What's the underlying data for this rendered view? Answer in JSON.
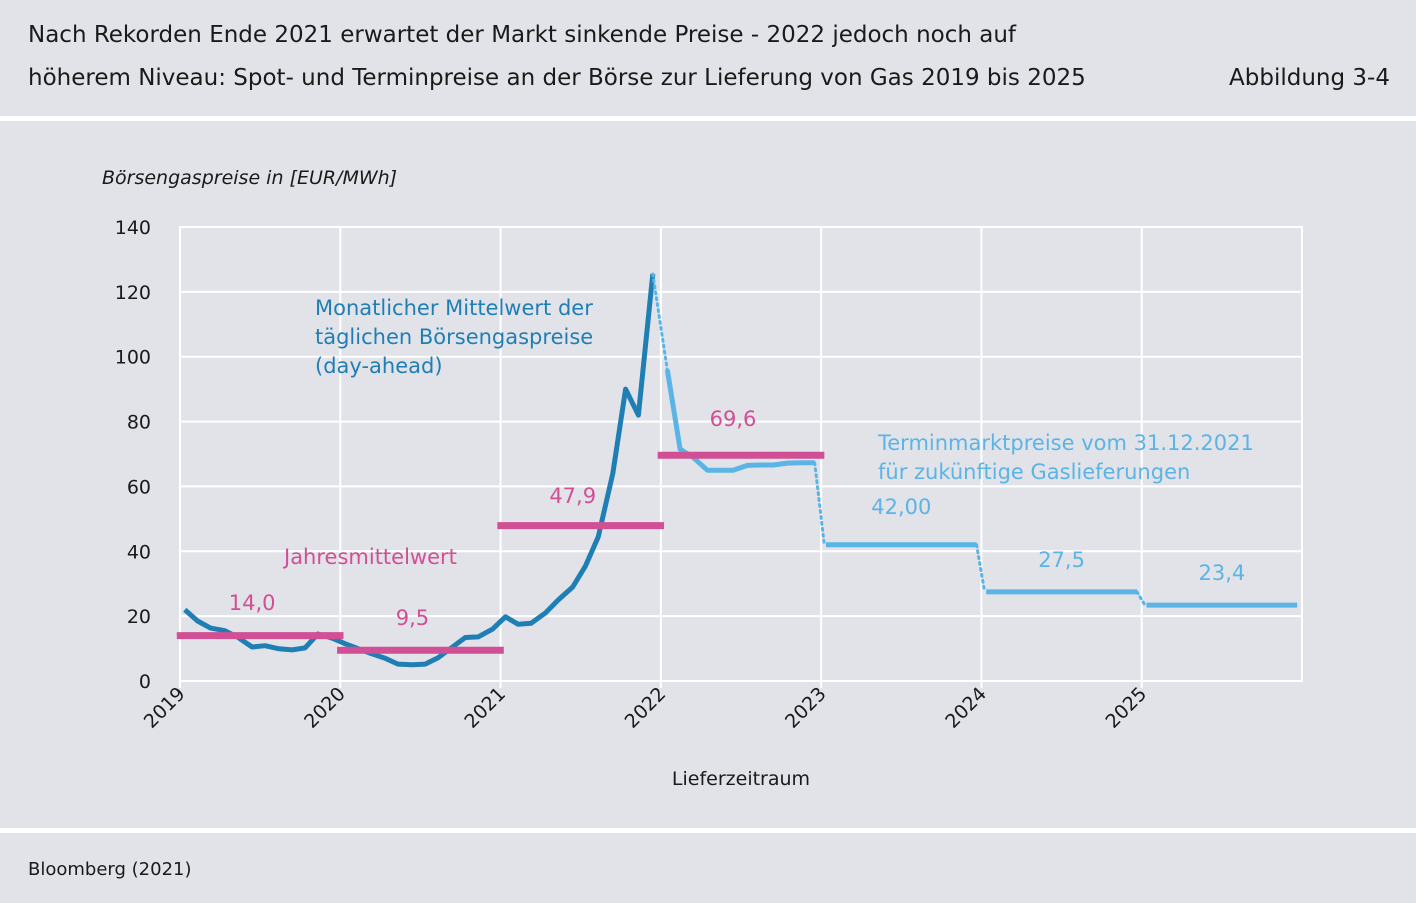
{
  "header": {
    "title_line1": "Nach Rekorden Ende 2021 erwartet der Markt sinkende Preise - 2022 jedoch noch auf",
    "title_line2": "höherem Niveau: Spot- und Terminpreise an der Börse zur Lieferung von Gas 2019 bis 2025",
    "figure_label": "Abbildung 3-4"
  },
  "footer": {
    "source": "Bloomberg (2021)"
  },
  "colors": {
    "spot": "#1f7fb4",
    "forward": "#5ab4e5",
    "annual": "#d04f95",
    "panel": "#e2e3e8",
    "grid": "#ffffff"
  },
  "chart_data": {
    "type": "line",
    "ylabel": "Börsengaspreise in [EUR/MWh]",
    "xlabel": "Lieferzeitraum",
    "ylim": [
      0,
      140
    ],
    "yticks": [
      "0",
      "20",
      "40",
      "60",
      "80",
      "100",
      "120",
      "140"
    ],
    "xlim": [
      2019,
      2026
    ],
    "xticks": [
      "2019",
      "2020",
      "2021",
      "2022",
      "2023",
      "2024",
      "2025"
    ],
    "grid": true,
    "series": [
      {
        "name": "Monatlicher Mittelwert der täglichen Börsengaspreise (day-ahead)",
        "style": "solid",
        "points": [
          [
            2019.03,
            22
          ],
          [
            2019.11,
            18.5
          ],
          [
            2019.19,
            16.3
          ],
          [
            2019.28,
            15.5
          ],
          [
            2019.36,
            13.5
          ],
          [
            2019.45,
            10.5
          ],
          [
            2019.53,
            10.9
          ],
          [
            2019.61,
            10
          ],
          [
            2019.7,
            9.6
          ],
          [
            2019.78,
            10.2
          ],
          [
            2019.86,
            14.5
          ],
          [
            2019.95,
            13.2
          ],
          [
            2020.03,
            11.5
          ],
          [
            2020.11,
            10
          ],
          [
            2020.19,
            8.5
          ],
          [
            2020.28,
            7
          ],
          [
            2020.36,
            5.2
          ],
          [
            2020.45,
            5
          ],
          [
            2020.53,
            5.2
          ],
          [
            2020.61,
            7.2
          ],
          [
            2020.7,
            10.5
          ],
          [
            2020.78,
            13.4
          ],
          [
            2020.86,
            13.6
          ],
          [
            2020.95,
            16
          ],
          [
            2021.03,
            19.8
          ],
          [
            2021.11,
            17.5
          ],
          [
            2021.19,
            17.8
          ],
          [
            2021.28,
            21
          ],
          [
            2021.36,
            25
          ],
          [
            2021.45,
            29
          ],
          [
            2021.53,
            35.5
          ],
          [
            2021.61,
            44.5
          ],
          [
            2021.7,
            64
          ],
          [
            2021.78,
            90
          ],
          [
            2021.86,
            82
          ],
          [
            2021.95,
            125.5
          ]
        ]
      },
      {
        "name": "Terminmarktpreise vom 31.12.2021 für zukünftige Gaslieferungen",
        "style": "solid",
        "points": [
          [
            2022.04,
            96
          ],
          [
            2022.12,
            71.5
          ],
          [
            2022.2,
            69
          ],
          [
            2022.29,
            65
          ],
          [
            2022.37,
            65
          ],
          [
            2022.45,
            65
          ],
          [
            2022.54,
            66.5
          ],
          [
            2022.62,
            66.6
          ],
          [
            2022.7,
            66.6
          ],
          [
            2022.79,
            67.2
          ],
          [
            2022.87,
            67.3
          ],
          [
            2022.96,
            67.3
          ]
        ]
      }
    ],
    "forward_yearly": [
      {
        "year": 2023,
        "value": 42.0,
        "label": "42,00"
      },
      {
        "year": 2024,
        "value": 27.5,
        "label": "27,5"
      },
      {
        "year": 2025,
        "value": 23.4,
        "label": "23,4"
      }
    ],
    "annual_means": [
      {
        "year": 2019,
        "value": 14.0,
        "label": "14,0"
      },
      {
        "year": 2020,
        "value": 9.5,
        "label": "9,5"
      },
      {
        "year": 2021,
        "value": 47.9,
        "label": "47,9"
      },
      {
        "year": 2022,
        "value": 69.6,
        "label": "69,6"
      }
    ],
    "annotations": {
      "spot": [
        "Monatlicher Mittelwert der",
        "täglichen Börsengaspreise",
        "(day-ahead)"
      ],
      "forward": [
        "Terminmarktpreise vom 31.12.2021",
        "für zukünftige Gaslieferungen"
      ],
      "annual": "Jahresmittelwert"
    }
  }
}
